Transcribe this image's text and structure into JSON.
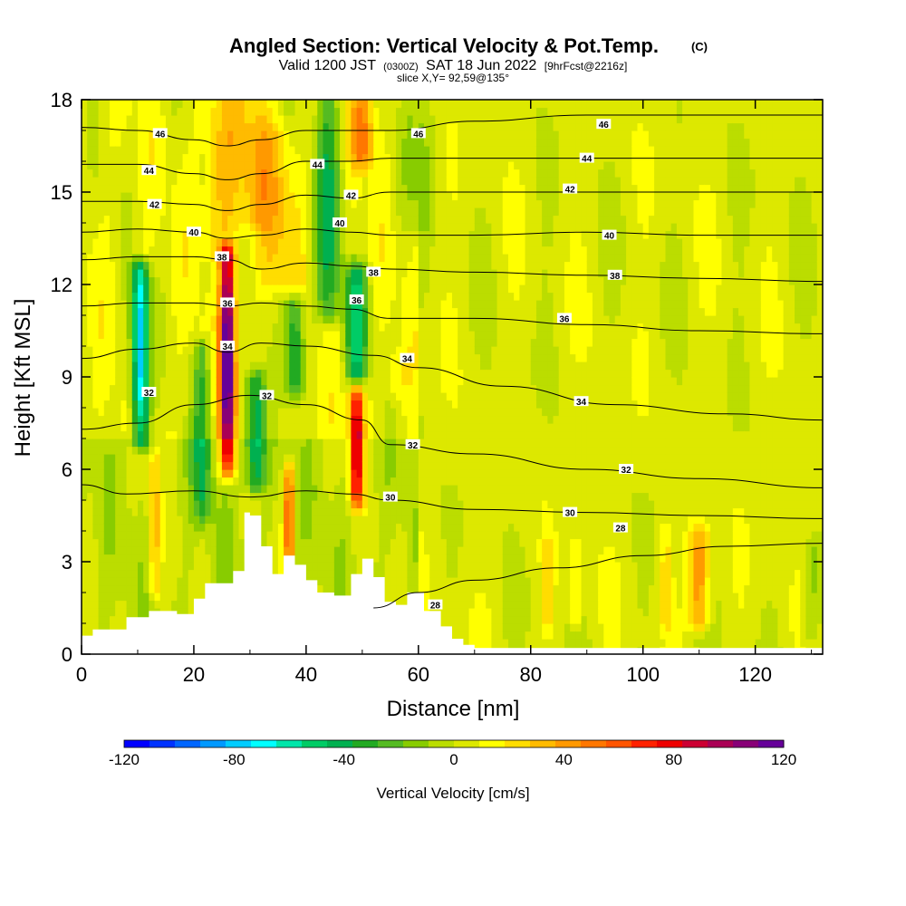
{
  "header": {
    "title": "Angled Section: Vertical Velocity & Pot.Temp.",
    "title_unit": "(C)",
    "valid_prefix": "Valid 1200 JST",
    "valid_utc": "(0300Z)",
    "valid_date": "SAT 18 Jun 2022",
    "forecast": "[9hrFcst@2216z]",
    "slice": "slice X,Y= 92,59@135°"
  },
  "colors": {
    "background": "#ffffff",
    "terrain": "#ffffff",
    "contour_line": "#000000"
  },
  "chart_data": {
    "type": "heatmap",
    "xlabel": "Distance [nm]",
    "ylabel": "Height [Kft MSL]",
    "xlim": [
      0,
      132
    ],
    "ylim": [
      0,
      18
    ],
    "xticks": [
      "0",
      "20",
      "40",
      "60",
      "80",
      "100",
      "120"
    ],
    "yticks": [
      "0",
      "3",
      "6",
      "9",
      "12",
      "15",
      "18"
    ],
    "field": {
      "name": "Vertical Velocity",
      "units": "cm/s",
      "range": [
        -120,
        120
      ],
      "colorbar_label": "Vertical Velocity [cm/s]",
      "colorbar_ticks": [
        "-120",
        "-80",
        "-40",
        "0",
        "40",
        "80",
        "120"
      ],
      "colorbar_colors": [
        "#0000ff",
        "#0033ff",
        "#0066ff",
        "#0099ff",
        "#00ccff",
        "#00ffff",
        "#00e6aa",
        "#00cc66",
        "#00b050",
        "#22aa22",
        "#55bb22",
        "#88cc00",
        "#bbdd00",
        "#dde800",
        "#ffff00",
        "#ffdd00",
        "#ffbb00",
        "#ff9900",
        "#ff7700",
        "#ff5500",
        "#ff2200",
        "#ee0000",
        "#cc0033",
        "#aa0055",
        "#880077",
        "#660099"
      ],
      "features": [
        {
          "x": 10.5,
          "y_bottom": 7.0,
          "y_top": 12.5,
          "w": 1.6,
          "peak": -90
        },
        {
          "x": 13.0,
          "y_bottom": 2.0,
          "y_top": 6.5,
          "w": 1.0,
          "peak": 35
        },
        {
          "x": 21.5,
          "y_bottom": 4.5,
          "y_top": 10.0,
          "w": 1.6,
          "peak": -40
        },
        {
          "x": 26.0,
          "y_bottom": 6.0,
          "y_top": 13.0,
          "w": 1.3,
          "peak": 120
        },
        {
          "x": 25.0,
          "y_bottom": 13.0,
          "y_top": 18.0,
          "w": 3.5,
          "peak": 25
        },
        {
          "x": 31.0,
          "y_bottom": 14.0,
          "y_top": 18.0,
          "w": 3.0,
          "peak": 20
        },
        {
          "x": 31.0,
          "y_bottom": 5.5,
          "y_top": 9.0,
          "w": 1.8,
          "peak": -55
        },
        {
          "x": 35.0,
          "y_bottom": 12.0,
          "y_top": 17.0,
          "w": 4.0,
          "peak": 20
        },
        {
          "x": 37.0,
          "y_bottom": 3.0,
          "y_top": 6.0,
          "w": 0.9,
          "peak": 60
        },
        {
          "x": 38.0,
          "y_bottom": 8.5,
          "y_top": 11.5,
          "w": 1.8,
          "peak": -50
        },
        {
          "x": 44.0,
          "y_bottom": 11.0,
          "y_top": 18.0,
          "w": 2.5,
          "peak": -45
        },
        {
          "x": 49.0,
          "y_bottom": 9.0,
          "y_top": 12.5,
          "w": 2.0,
          "peak": -55
        },
        {
          "x": 49.0,
          "y_bottom": 5.0,
          "y_top": 8.5,
          "w": 1.2,
          "peak": 90
        },
        {
          "x": 50.0,
          "y_bottom": 16.0,
          "y_top": 18.0,
          "w": 2.0,
          "peak": 45
        },
        {
          "x": 56.0,
          "y_bottom": 8.5,
          "y_top": 9.5,
          "w": 2.0,
          "peak": 12
        },
        {
          "x": 60.0,
          "y_bottom": 14.0,
          "y_top": 18.0,
          "w": 3.0,
          "peak": -15
        },
        {
          "x": 110.0,
          "y_bottom": 1.0,
          "y_top": 4.0,
          "w": 1.8,
          "peak": 45
        },
        {
          "x": 104.0,
          "y_bottom": 1.0,
          "y_top": 4.0,
          "w": 1.0,
          "peak": 20
        },
        {
          "x": 88.0,
          "y_bottom": 1.0,
          "y_top": 3.5,
          "w": 1.0,
          "peak": 20
        },
        {
          "x": 83.0,
          "y_bottom": 1.0,
          "y_top": 3.5,
          "w": 1.0,
          "peak": 20
        },
        {
          "x": 130.0,
          "y_bottom": 0.5,
          "y_top": 3.5,
          "w": 1.5,
          "peak": -20
        }
      ]
    },
    "contours": {
      "name": "Pot.Temp.",
      "units": "C",
      "lines": [
        {
          "level": 28,
          "points": [
            [
              52,
              1.5
            ],
            [
              60,
              2.0
            ],
            [
              70,
              2.4
            ],
            [
              85,
              2.8
            ],
            [
              100,
              3.2
            ],
            [
              115,
              3.5
            ],
            [
              132,
              3.6
            ]
          ],
          "labels": [
            {
              "x": 63,
              "y": 1.6,
              "text": "28"
            },
            {
              "x": 96,
              "y": 4.1,
              "text": "28"
            }
          ]
        },
        {
          "level": 30,
          "points": [
            [
              0,
              5.5
            ],
            [
              8,
              5.2
            ],
            [
              20,
              5.3
            ],
            [
              30,
              5.1
            ],
            [
              40,
              5.3
            ],
            [
              48,
              5.2
            ],
            [
              55,
              5.0
            ],
            [
              70,
              4.7
            ],
            [
              90,
              4.6
            ],
            [
              110,
              4.5
            ],
            [
              132,
              4.4
            ]
          ],
          "labels": [
            {
              "x": 55,
              "y": 5.1,
              "text": "30"
            },
            {
              "x": 87,
              "y": 4.6,
              "text": "30"
            }
          ]
        },
        {
          "level": 32,
          "points": [
            [
              0,
              7.3
            ],
            [
              10,
              7.5
            ],
            [
              20,
              8.1
            ],
            [
              30,
              8.4
            ],
            [
              40,
              8.1
            ],
            [
              50,
              7.6
            ],
            [
              55,
              6.8
            ],
            [
              70,
              6.5
            ],
            [
              90,
              6.0
            ],
            [
              110,
              5.7
            ],
            [
              132,
              5.4
            ]
          ],
          "labels": [
            {
              "x": 12,
              "y": 8.5,
              "text": "32"
            },
            {
              "x": 33,
              "y": 8.4,
              "text": "32"
            },
            {
              "x": 59,
              "y": 6.8,
              "text": "32"
            },
            {
              "x": 97,
              "y": 6.0,
              "text": "32"
            }
          ]
        },
        {
          "level": 34,
          "points": [
            [
              0,
              9.6
            ],
            [
              10,
              9.9
            ],
            [
              20,
              10.1
            ],
            [
              26,
              9.8
            ],
            [
              32,
              10.1
            ],
            [
              40,
              10.0
            ],
            [
              52,
              9.7
            ],
            [
              60,
              9.3
            ],
            [
              75,
              8.7
            ],
            [
              95,
              8.1
            ],
            [
              115,
              7.8
            ],
            [
              132,
              7.6
            ]
          ],
          "labels": [
            {
              "x": 26,
              "y": 10.0,
              "text": "34"
            },
            {
              "x": 58,
              "y": 9.6,
              "text": "34"
            },
            {
              "x": 89,
              "y": 8.2,
              "text": "34"
            }
          ]
        },
        {
          "level": 36,
          "points": [
            [
              0,
              11.3
            ],
            [
              10,
              11.4
            ],
            [
              20,
              11.4
            ],
            [
              26,
              11.3
            ],
            [
              32,
              11.4
            ],
            [
              40,
              11.3
            ],
            [
              48,
              11.2
            ],
            [
              55,
              10.9
            ],
            [
              70,
              10.9
            ],
            [
              90,
              10.7
            ],
            [
              110,
              10.5
            ],
            [
              132,
              10.4
            ]
          ],
          "labels": [
            {
              "x": 26,
              "y": 11.4,
              "text": "36"
            },
            {
              "x": 49,
              "y": 11.5,
              "text": "36"
            },
            {
              "x": 86,
              "y": 10.9,
              "text": "36"
            }
          ]
        },
        {
          "level": 38,
          "points": [
            [
              0,
              12.8
            ],
            [
              10,
              12.9
            ],
            [
              20,
              12.9
            ],
            [
              26,
              12.8
            ],
            [
              32,
              12.5
            ],
            [
              40,
              12.7
            ],
            [
              48,
              12.6
            ],
            [
              55,
              12.5
            ],
            [
              70,
              12.4
            ],
            [
              90,
              12.3
            ],
            [
              110,
              12.2
            ],
            [
              132,
              12.1
            ]
          ],
          "labels": [
            {
              "x": 25,
              "y": 12.9,
              "text": "38"
            },
            {
              "x": 52,
              "y": 12.4,
              "text": "38"
            },
            {
              "x": 95,
              "y": 12.3,
              "text": "38"
            }
          ]
        },
        {
          "level": 40,
          "points": [
            [
              0,
              13.7
            ],
            [
              10,
              13.8
            ],
            [
              20,
              13.7
            ],
            [
              26,
              13.5
            ],
            [
              32,
              13.6
            ],
            [
              40,
              13.8
            ],
            [
              48,
              13.7
            ],
            [
              55,
              13.6
            ],
            [
              70,
              13.6
            ],
            [
              90,
              13.7
            ],
            [
              110,
              13.6
            ],
            [
              132,
              13.6
            ]
          ],
          "labels": [
            {
              "x": 20,
              "y": 13.7,
              "text": "40"
            },
            {
              "x": 46,
              "y": 14.0,
              "text": "40"
            },
            {
              "x": 94,
              "y": 13.6,
              "text": "40"
            }
          ]
        },
        {
          "level": 42,
          "points": [
            [
              0,
              14.7
            ],
            [
              10,
              14.7
            ],
            [
              20,
              14.6
            ],
            [
              26,
              14.4
            ],
            [
              32,
              14.6
            ],
            [
              40,
              14.9
            ],
            [
              48,
              14.8
            ],
            [
              55,
              15.0
            ],
            [
              70,
              15.0
            ],
            [
              90,
              15.0
            ],
            [
              110,
              15.0
            ],
            [
              132,
              15.0
            ]
          ],
          "labels": [
            {
              "x": 13,
              "y": 14.6,
              "text": "42"
            },
            {
              "x": 48,
              "y": 14.9,
              "text": "42"
            },
            {
              "x": 87,
              "y": 15.1,
              "text": "42"
            }
          ]
        },
        {
          "level": 44,
          "points": [
            [
              0,
              15.9
            ],
            [
              10,
              15.9
            ],
            [
              20,
              15.6
            ],
            [
              26,
              15.4
            ],
            [
              32,
              15.6
            ],
            [
              40,
              16.0
            ],
            [
              48,
              16.0
            ],
            [
              55,
              16.1
            ],
            [
              70,
              16.1
            ],
            [
              90,
              16.1
            ],
            [
              110,
              16.1
            ],
            [
              132,
              16.1
            ]
          ],
          "labels": [
            {
              "x": 12,
              "y": 15.7,
              "text": "44"
            },
            {
              "x": 42,
              "y": 15.9,
              "text": "44"
            },
            {
              "x": 90,
              "y": 16.1,
              "text": "44"
            }
          ]
        },
        {
          "level": 46,
          "points": [
            [
              0,
              17.1
            ],
            [
              10,
              17.0
            ],
            [
              20,
              16.7
            ],
            [
              26,
              16.5
            ],
            [
              32,
              16.7
            ],
            [
              40,
              17.0
            ],
            [
              48,
              17.0
            ],
            [
              55,
              17.0
            ],
            [
              70,
              17.3
            ],
            [
              90,
              17.5
            ],
            [
              110,
              17.5
            ],
            [
              132,
              17.5
            ]
          ],
          "labels": [
            {
              "x": 14,
              "y": 16.9,
              "text": "46"
            },
            {
              "x": 60,
              "y": 16.9,
              "text": "46"
            },
            {
              "x": 93,
              "y": 17.2,
              "text": "46"
            }
          ]
        }
      ]
    },
    "terrain": [
      [
        0,
        0.6
      ],
      [
        2,
        0.8
      ],
      [
        8,
        1.2
      ],
      [
        12,
        1.4
      ],
      [
        17,
        1.3
      ],
      [
        20,
        1.8
      ],
      [
        22,
        2.3
      ],
      [
        27,
        2.7
      ],
      [
        29,
        4.6
      ],
      [
        30,
        4.5
      ],
      [
        32,
        3.5
      ],
      [
        34,
        2.6
      ],
      [
        36,
        3.2
      ],
      [
        38,
        2.9
      ],
      [
        40,
        2.4
      ],
      [
        42,
        2.0
      ],
      [
        45,
        1.9
      ],
      [
        48,
        2.6
      ],
      [
        50,
        3.1
      ],
      [
        52,
        2.5
      ],
      [
        54,
        1.7
      ],
      [
        56,
        1.6
      ],
      [
        58,
        2.0
      ],
      [
        61,
        1.4
      ],
      [
        64,
        0.9
      ],
      [
        66,
        0.5
      ],
      [
        68,
        0.3
      ],
      [
        70,
        0.0
      ]
    ]
  }
}
